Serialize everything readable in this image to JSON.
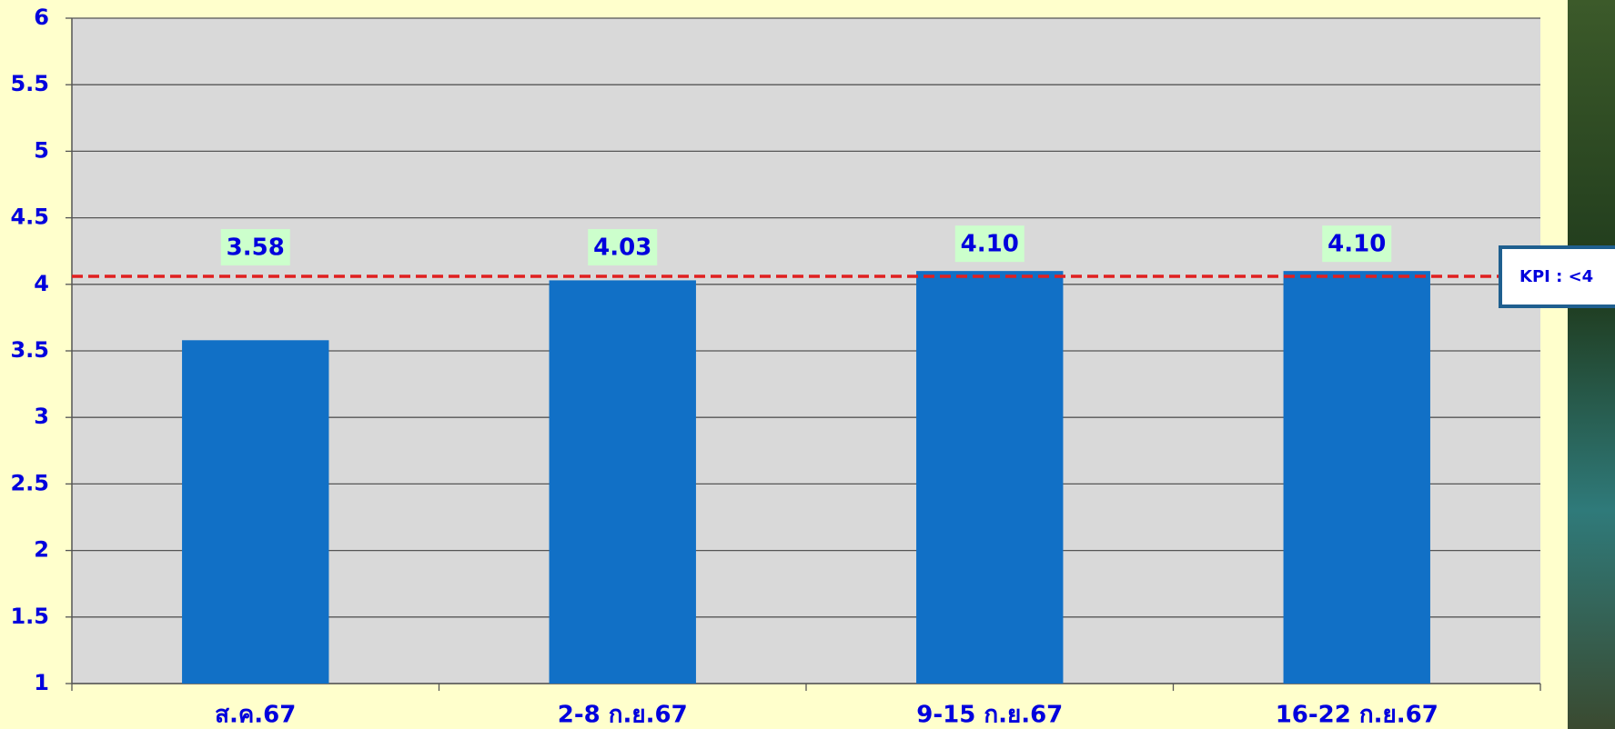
{
  "chart_data": {
    "type": "bar",
    "categories": [
      "ส.ค.67",
      "2-8 ก.ย.67",
      "9-15 ก.ย.67",
      "16-22 ก.ย.67"
    ],
    "values": [
      3.58,
      4.03,
      4.1,
      4.1
    ],
    "value_labels": [
      "3.58",
      "4.03",
      "4.10",
      "4.10"
    ],
    "color": "#1170c6",
    "ylim": [
      1,
      6
    ],
    "yticks": [
      1,
      1.5,
      2,
      2.5,
      3,
      3.5,
      4,
      4.5,
      5,
      5.5,
      6
    ],
    "grid": true,
    "kpi_line": {
      "value": 4.06,
      "label": "KPI : <4",
      "color": "#e02020"
    }
  }
}
